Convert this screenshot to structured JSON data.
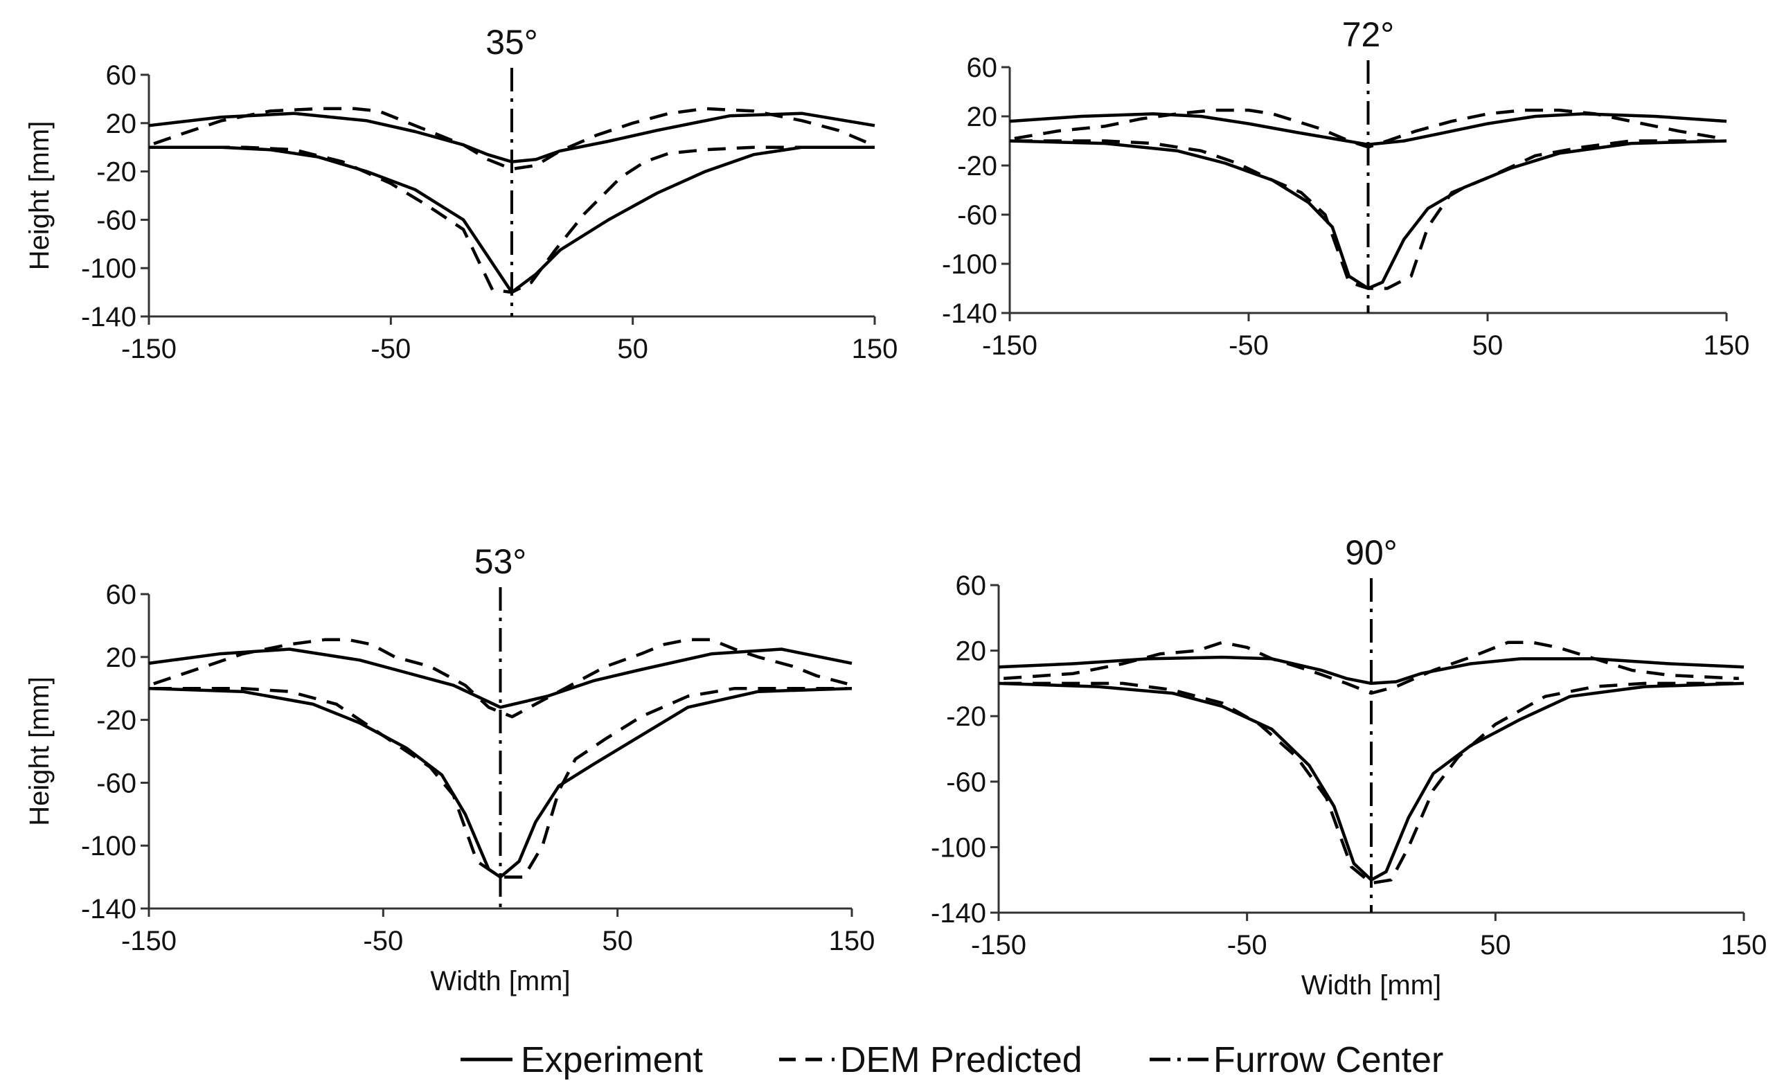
{
  "legend": [
    {
      "label": "Experiment",
      "style": "solid"
    },
    {
      "label": "DEM Predicted",
      "style": "dashed"
    },
    {
      "label": "Furrow Center",
      "style": "dash-dot"
    }
  ],
  "chart_data": [
    {
      "type": "line",
      "title": "35°",
      "xlabel": "",
      "ylabel": "Height [mm]",
      "xlim": [
        -150,
        150
      ],
      "ylim": [
        -140,
        60
      ],
      "xticks": [
        -150,
        -50,
        50,
        150
      ],
      "yticks": [
        60,
        20,
        -20,
        -60,
        -100,
        -140
      ],
      "furrow_center_x": 0,
      "series": [
        {
          "name": "Experiment",
          "style": "solid",
          "x": [
            -150,
            -120,
            -90,
            -60,
            -40,
            -20,
            -10,
            0,
            10,
            20,
            40,
            60,
            90,
            120,
            150
          ],
          "y": [
            18,
            25,
            28,
            22,
            13,
            2,
            -6,
            -12,
            -10,
            -3,
            5,
            14,
            26,
            28,
            18
          ]
        },
        {
          "name": "Experiment",
          "style": "solid",
          "x": [
            -150,
            -120,
            -100,
            -80,
            -60,
            -40,
            -20,
            -10,
            0,
            10,
            20,
            40,
            60,
            80,
            100,
            120,
            150
          ],
          "y": [
            0,
            0,
            -2,
            -8,
            -20,
            -35,
            -60,
            -90,
            -120,
            -105,
            -85,
            -60,
            -38,
            -20,
            -6,
            0,
            0
          ]
        },
        {
          "name": "DEM Predicted",
          "style": "dashed",
          "x": [
            -148,
            -135,
            -120,
            -100,
            -80,
            -65,
            -55,
            -40,
            -20,
            -10,
            0,
            10,
            20,
            35,
            50,
            65,
            80,
            100,
            120,
            135,
            148
          ],
          "y": [
            3,
            12,
            22,
            30,
            32,
            32,
            30,
            18,
            2,
            -10,
            -18,
            -15,
            -3,
            10,
            20,
            28,
            32,
            30,
            22,
            14,
            3
          ]
        },
        {
          "name": "DEM Predicted",
          "style": "dashed",
          "x": [
            -148,
            -130,
            -110,
            -90,
            -70,
            -50,
            -35,
            -20,
            -8,
            0,
            8,
            18,
            30,
            45,
            55,
            65,
            80,
            100,
            120,
            148
          ],
          "y": [
            0,
            0,
            0,
            -2,
            -12,
            -30,
            -48,
            -68,
            -118,
            -120,
            -112,
            -85,
            -55,
            -25,
            -12,
            -5,
            -2,
            0,
            0,
            0
          ]
        }
      ]
    },
    {
      "type": "line",
      "title": "72°",
      "xlabel": "",
      "ylabel": "",
      "xlim": [
        -150,
        150
      ],
      "ylim": [
        -140,
        60
      ],
      "xticks": [
        -150,
        -50,
        50,
        150
      ],
      "yticks": [
        60,
        20,
        -20,
        -60,
        -100,
        -140
      ],
      "furrow_center_x": 0,
      "series": [
        {
          "name": "Experiment",
          "style": "solid",
          "x": [
            -150,
            -120,
            -90,
            -70,
            -50,
            -30,
            -15,
            0,
            15,
            30,
            50,
            70,
            90,
            120,
            150
          ],
          "y": [
            16,
            20,
            22,
            20,
            14,
            7,
            2,
            -3,
            0,
            6,
            14,
            20,
            22,
            20,
            16
          ]
        },
        {
          "name": "Experiment",
          "style": "solid",
          "x": [
            -150,
            -110,
            -80,
            -60,
            -40,
            -25,
            -15,
            -8,
            0,
            6,
            15,
            25,
            40,
            60,
            80,
            110,
            150
          ],
          "y": [
            0,
            -2,
            -8,
            -18,
            -32,
            -50,
            -70,
            -110,
            -120,
            -115,
            -80,
            -55,
            -38,
            -22,
            -10,
            -2,
            0
          ]
        },
        {
          "name": "DEM Predicted",
          "style": "dashed",
          "x": [
            -148,
            -130,
            -110,
            -95,
            -80,
            -65,
            -50,
            -40,
            -20,
            -8,
            0,
            8,
            20,
            35,
            50,
            65,
            80,
            95,
            110,
            130,
            148
          ],
          "y": [
            2,
            8,
            12,
            18,
            22,
            25,
            25,
            22,
            10,
            0,
            -5,
            0,
            8,
            16,
            22,
            25,
            25,
            22,
            16,
            8,
            2
          ]
        },
        {
          "name": "DEM Predicted",
          "style": "dashed",
          "x": [
            -148,
            -130,
            -110,
            -90,
            -70,
            -55,
            -40,
            -28,
            -18,
            -8,
            0,
            8,
            18,
            25,
            35,
            50,
            70,
            90,
            110,
            130,
            148
          ],
          "y": [
            0,
            0,
            0,
            -2,
            -8,
            -18,
            -32,
            -42,
            -60,
            -115,
            -120,
            -120,
            -110,
            -70,
            -42,
            -30,
            -12,
            -5,
            0,
            0,
            0
          ]
        }
      ]
    },
    {
      "type": "line",
      "title": "53°",
      "xlabel": "Width [mm]",
      "ylabel": "Height [mm]",
      "xlim": [
        -150,
        150
      ],
      "ylim": [
        -140,
        60
      ],
      "xticks": [
        -150,
        -50,
        50,
        150
      ],
      "yticks": [
        60,
        20,
        -20,
        -60,
        -100,
        -140
      ],
      "furrow_center_x": 0,
      "series": [
        {
          "name": "Experiment",
          "style": "solid",
          "x": [
            -150,
            -120,
            -90,
            -60,
            -40,
            -20,
            0,
            20,
            40,
            60,
            90,
            120,
            150
          ],
          "y": [
            16,
            22,
            25,
            18,
            10,
            2,
            -12,
            -5,
            5,
            12,
            22,
            25,
            16
          ]
        },
        {
          "name": "Experiment",
          "style": "solid",
          "x": [
            -150,
            -110,
            -80,
            -60,
            -40,
            -25,
            -15,
            -5,
            0,
            8,
            15,
            25,
            40,
            60,
            80,
            110,
            150
          ],
          "y": [
            0,
            -2,
            -10,
            -22,
            -38,
            -55,
            -80,
            -115,
            -120,
            -110,
            -85,
            -62,
            -48,
            -30,
            -12,
            -2,
            0
          ]
        },
        {
          "name": "DEM Predicted",
          "style": "dashed",
          "x": [
            -148,
            -130,
            -110,
            -90,
            -75,
            -65,
            -55,
            -45,
            -30,
            -15,
            -5,
            5,
            15,
            30,
            45,
            60,
            70,
            80,
            90,
            100,
            110,
            125,
            135,
            148
          ],
          "y": [
            3,
            12,
            22,
            28,
            31,
            31,
            28,
            20,
            14,
            2,
            -12,
            -18,
            -10,
            2,
            14,
            22,
            28,
            31,
            31,
            25,
            20,
            14,
            8,
            3
          ]
        },
        {
          "name": "DEM Predicted",
          "style": "dashed",
          "x": [
            -148,
            -130,
            -110,
            -90,
            -70,
            -55,
            -45,
            -30,
            -20,
            -10,
            0,
            10,
            18,
            25,
            32,
            45,
            60,
            80,
            100,
            120,
            148
          ],
          "y": [
            0,
            0,
            0,
            -2,
            -10,
            -25,
            -35,
            -50,
            -68,
            -110,
            -120,
            -120,
            -100,
            -65,
            -45,
            -32,
            -18,
            -5,
            0,
            0,
            0
          ]
        }
      ]
    },
    {
      "type": "line",
      "title": "90°",
      "xlabel": "Width [mm]",
      "ylabel": "",
      "xlim": [
        -150,
        150
      ],
      "ylim": [
        -140,
        60
      ],
      "xticks": [
        -150,
        -50,
        50,
        150
      ],
      "yticks": [
        60,
        20,
        -20,
        -60,
        -100,
        -140
      ],
      "furrow_center_x": 0,
      "series": [
        {
          "name": "Experiment",
          "style": "solid",
          "x": [
            -150,
            -120,
            -90,
            -60,
            -40,
            -20,
            -10,
            0,
            10,
            20,
            40,
            60,
            90,
            120,
            150
          ],
          "y": [
            10,
            12,
            15,
            16,
            15,
            8,
            3,
            0,
            1,
            6,
            12,
            15,
            15,
            12,
            10
          ]
        },
        {
          "name": "Experiment",
          "style": "solid",
          "x": [
            -150,
            -110,
            -80,
            -60,
            -40,
            -25,
            -15,
            -7,
            0,
            6,
            15,
            25,
            40,
            60,
            80,
            110,
            150
          ],
          "y": [
            0,
            -2,
            -6,
            -14,
            -28,
            -50,
            -75,
            -110,
            -120,
            -115,
            -82,
            -55,
            -38,
            -22,
            -8,
            -2,
            0
          ]
        },
        {
          "name": "DEM Predicted",
          "style": "dashed",
          "x": [
            -148,
            -120,
            -100,
            -85,
            -70,
            -60,
            -50,
            -40,
            -25,
            -10,
            0,
            10,
            25,
            40,
            55,
            65,
            75,
            90,
            105,
            120,
            148
          ],
          "y": [
            3,
            6,
            12,
            18,
            20,
            25,
            22,
            15,
            8,
            0,
            -6,
            -2,
            8,
            16,
            25,
            25,
            22,
            15,
            8,
            5,
            3
          ]
        },
        {
          "name": "DEM Predicted",
          "style": "dashed",
          "x": [
            -148,
            -120,
            -100,
            -80,
            -60,
            -45,
            -30,
            -18,
            -8,
            0,
            8,
            15,
            25,
            35,
            50,
            70,
            90,
            110,
            130,
            148
          ],
          "y": [
            0,
            0,
            0,
            -4,
            -12,
            -25,
            -45,
            -70,
            -112,
            -122,
            -120,
            -100,
            -65,
            -45,
            -25,
            -8,
            -2,
            0,
            0,
            0
          ]
        }
      ]
    }
  ]
}
